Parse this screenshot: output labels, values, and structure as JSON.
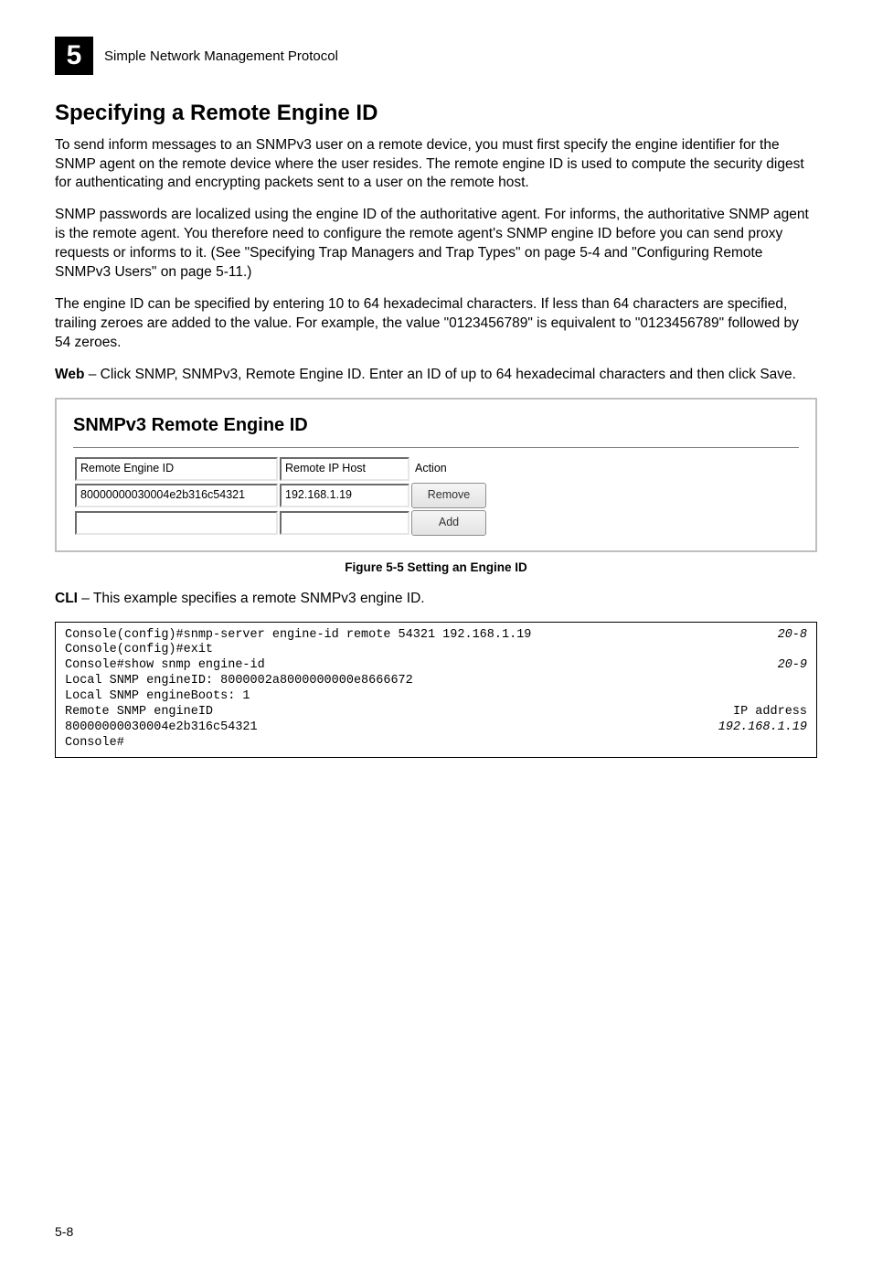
{
  "header": {
    "chapter_number": "5",
    "chapter_title": "Simple Network Management Protocol"
  },
  "section": {
    "title": "Specifying a Remote Engine ID",
    "p1": "To send inform messages to an SNMPv3 user on a remote device, you must first specify the engine identifier for the SNMP agent on the remote device where the user resides. The remote engine ID is used to compute the security digest for authenticating and encrypting packets sent to a user on the remote host.",
    "p2": "SNMP passwords are localized using the engine ID of the authoritative agent. For informs, the authoritative SNMP agent is the remote agent. You therefore need to configure the remote agent's SNMP engine ID before you can send proxy requests or informs to it. (See \"Specifying Trap Managers and Trap Types\" on page 5-4 and \"Configuring Remote SNMPv3 Users\" on page 5-11.)",
    "p3": "The engine ID can be specified by entering 10 to 64 hexadecimal characters. If less than 64 characters are specified, trailing zeroes are added to the value. For example, the value \"0123456789\" is equivalent to \"0123456789\" followed by 54 zeroes.",
    "web_label": "Web",
    "web_text": " – Click SNMP, SNMPv3, Remote Engine ID. Enter an ID of up to 64 hexadecimal characters and then click Save."
  },
  "figure": {
    "panel_title": "SNMPv3 Remote Engine ID",
    "columns": {
      "c1": "Remote Engine ID",
      "c2": "Remote IP Host",
      "c3": "Action"
    },
    "row": {
      "engine_id": "80000000030004e2b316c54321",
      "ip": "192.168.1.19",
      "remove_btn": "Remove"
    },
    "add_row": {
      "engine_id": "",
      "ip": "",
      "add_btn": "Add"
    },
    "caption": "Figure 5-5   Setting an Engine ID"
  },
  "cli": {
    "label": "CLI",
    "intro": " – This example specifies a remote SNMPv3 engine ID.",
    "lines": [
      {
        "left": "Console(config)#snmp-server engine-id remote 54321 192.168.1.19",
        "right": "20-8"
      },
      {
        "left": "Console(config)#exit",
        "right": ""
      },
      {
        "left": "Console#show snmp engine-id",
        "right": "20-9"
      },
      {
        "left": "Local SNMP engineID: 8000002a8000000000e8666672",
        "right": ""
      },
      {
        "left": "Local SNMP engineBoots: 1",
        "right": ""
      },
      {
        "left": "",
        "right": ""
      },
      {
        "left": "Remote SNMP engineID",
        "right": "IP address"
      },
      {
        "left": "80000000030004e2b316c54321",
        "right": "192.168.1.19"
      },
      {
        "left": "Console#",
        "right": ""
      }
    ]
  },
  "footer": {
    "page_number": "5-8"
  },
  "style": {
    "col_widths": {
      "c1": "210px",
      "c2": "130px",
      "c3": "80px"
    }
  }
}
